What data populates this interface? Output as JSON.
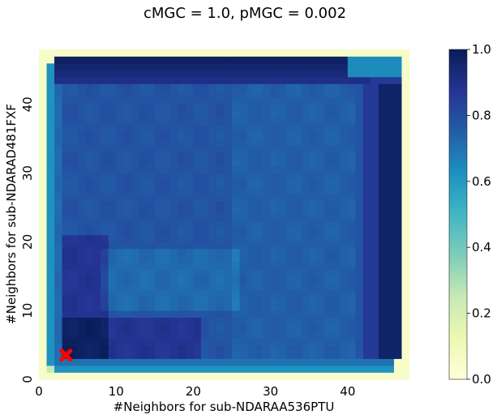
{
  "chart_data": {
    "type": "heatmap",
    "title": "cMGC = 1.0, pMGC = 0.002",
    "xlabel": "#Neighbors for sub-NDARAA536PTU",
    "ylabel": "#Neighbors for sub-NDARAD481FXF",
    "x_range": [
      0,
      48
    ],
    "y_range": [
      0,
      48
    ],
    "x_ticks": [
      "0",
      "10",
      "20",
      "30",
      "40"
    ],
    "y_ticks": [
      "0",
      "10",
      "20",
      "30",
      "40"
    ],
    "colorbar": {
      "range": [
        0.0,
        1.0
      ],
      "ticks": [
        "0.0",
        "0.2",
        "0.4",
        "0.6",
        "0.8",
        "1.0"
      ],
      "colormap": "YlGnBu"
    },
    "optimal_point": {
      "x": 3,
      "y": 3,
      "marker": "x",
      "color": "#ff0000"
    },
    "grid": false
  }
}
